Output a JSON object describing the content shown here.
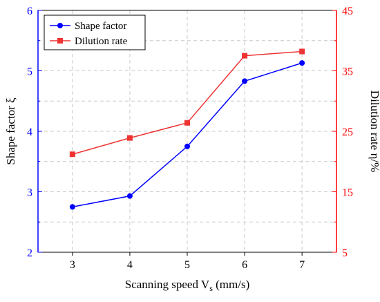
{
  "chart_data": {
    "type": "line",
    "xlabel": "Scanning speed V",
    "xlabel_sub": "s",
    "xlabel_unit": " (mm/s)",
    "x": [
      3,
      4,
      5,
      6,
      7
    ],
    "x_ticks": [
      "3",
      "4",
      "5",
      "6",
      "7"
    ],
    "xlim": [
      2.4,
      7.6
    ],
    "y_left": {
      "label": "Shape factor ξ",
      "lim": [
        2,
        6
      ],
      "ticks": [
        "2",
        "3",
        "4",
        "5",
        "6"
      ],
      "color": "#0000ff"
    },
    "y_right": {
      "label": "Dilution rate η/%",
      "lim": [
        5,
        45
      ],
      "ticks": [
        "5",
        "15",
        "25",
        "35",
        "45"
      ],
      "color": "#ff0000"
    },
    "series": [
      {
        "name": "Shape factor",
        "axis": "left",
        "marker": "circle",
        "color": "#0000ff",
        "values": [
          2.75,
          2.93,
          3.75,
          4.83,
          5.13
        ]
      },
      {
        "name": "Dilution rate",
        "axis": "right",
        "marker": "square",
        "color": "#ee3333",
        "values": [
          21.2,
          23.9,
          26.4,
          37.5,
          38.2
        ]
      }
    ],
    "grid": true,
    "legend_position": "top-left"
  }
}
